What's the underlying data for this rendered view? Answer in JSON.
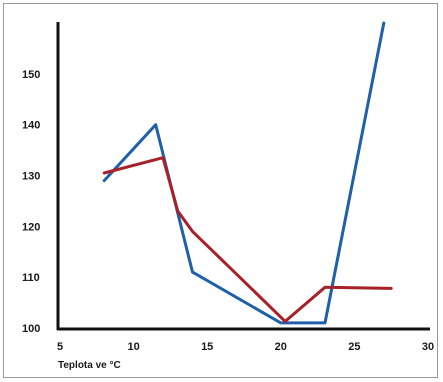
{
  "chart_data": {
    "type": "line",
    "title": "",
    "xlabel": "Teplota ve °C",
    "ylabel": "",
    "xlim": [
      5,
      30
    ],
    "ylim": [
      100,
      160
    ],
    "x_ticks": [
      "5",
      "10",
      "15",
      "20",
      "25",
      "30"
    ],
    "y_ticks": [
      "100",
      "110",
      "120",
      "130",
      "140",
      "150"
    ],
    "grid": false,
    "legend": "none",
    "series": [
      {
        "color": "#2060a8",
        "points": [
          [
            8,
            129
          ],
          [
            11.5,
            140
          ],
          [
            14,
            111
          ],
          [
            20,
            101
          ],
          [
            23,
            101
          ],
          [
            27,
            160
          ]
        ]
      },
      {
        "color": "#a8202a",
        "points": [
          [
            8,
            130.5
          ],
          [
            12,
            133.5
          ],
          [
            13,
            123
          ],
          [
            14,
            119
          ],
          [
            20.3,
            101.3
          ],
          [
            23,
            108
          ],
          [
            27.5,
            107.8
          ]
        ]
      }
    ]
  }
}
